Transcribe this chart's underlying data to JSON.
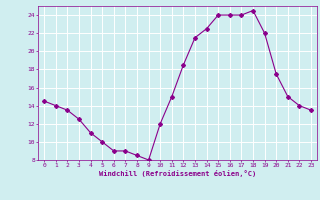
{
  "x": [
    0,
    1,
    2,
    3,
    4,
    5,
    6,
    7,
    8,
    9,
    10,
    11,
    12,
    13,
    14,
    15,
    16,
    17,
    18,
    19,
    20,
    21,
    22,
    23
  ],
  "y": [
    14.5,
    14.0,
    13.5,
    12.5,
    11.0,
    10.0,
    9.0,
    9.0,
    8.5,
    8.0,
    12.0,
    15.0,
    18.5,
    21.5,
    22.5,
    24.0,
    24.0,
    24.0,
    24.5,
    22.0,
    17.5,
    15.0,
    14.0,
    13.5
  ],
  "line_color": "#8b008b",
  "marker": "D",
  "marker_size": 2,
  "bg_color": "#d0eef0",
  "grid_color": "#ffffff",
  "xlabel": "Windchill (Refroidissement éolien,°C)",
  "xlabel_color": "#8b008b",
  "tick_color": "#8b008b",
  "ylim": [
    8,
    25
  ],
  "xlim": [
    -0.5,
    23.5
  ],
  "yticks": [
    8,
    10,
    12,
    14,
    16,
    18,
    20,
    22,
    24
  ],
  "xticks": [
    0,
    1,
    2,
    3,
    4,
    5,
    6,
    7,
    8,
    9,
    10,
    11,
    12,
    13,
    14,
    15,
    16,
    17,
    18,
    19,
    20,
    21,
    22,
    23
  ],
  "figsize": [
    3.2,
    2.0
  ],
  "dpi": 100
}
